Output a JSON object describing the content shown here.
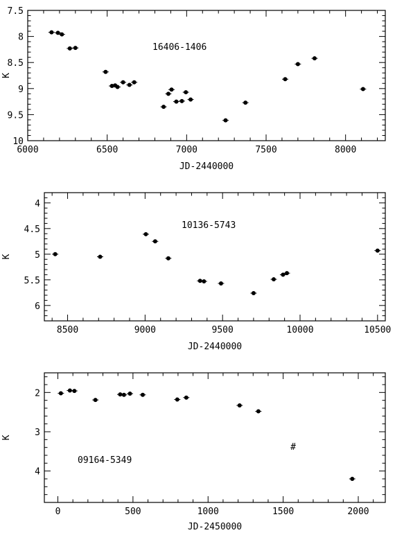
{
  "chart_data": [
    {
      "type": "scatter",
      "annotation": "16406-1406",
      "xlabel": "JD-2440000",
      "ylabel": "K",
      "xlim": [
        6000,
        8250
      ],
      "ylim": [
        7.5,
        10
      ],
      "y_inverted": true,
      "xticks": [
        6000,
        6500,
        7000,
        7500,
        8000
      ],
      "yticks": [
        7.5,
        8,
        8.5,
        9,
        9.5,
        10
      ],
      "xtick_labels": [
        "6000",
        "6500",
        "7000",
        "7500",
        "8000"
      ],
      "ytick_labels": [
        "7.5",
        "8",
        "8.5",
        "9",
        "9.5",
        "10"
      ],
      "grid": false,
      "points": [
        {
          "x": 6150,
          "y": 7.92
        },
        {
          "x": 6190,
          "y": 7.93
        },
        {
          "x": 6215,
          "y": 7.96
        },
        {
          "x": 6265,
          "y": 8.23
        },
        {
          "x": 6300,
          "y": 8.22
        },
        {
          "x": 6490,
          "y": 8.68
        },
        {
          "x": 6530,
          "y": 8.95
        },
        {
          "x": 6550,
          "y": 8.94
        },
        {
          "x": 6565,
          "y": 8.97
        },
        {
          "x": 6600,
          "y": 8.88
        },
        {
          "x": 6640,
          "y": 8.93
        },
        {
          "x": 6670,
          "y": 8.88
        },
        {
          "x": 6855,
          "y": 9.35
        },
        {
          "x": 6885,
          "y": 9.1
        },
        {
          "x": 6905,
          "y": 9.02
        },
        {
          "x": 6935,
          "y": 9.25
        },
        {
          "x": 6970,
          "y": 9.24
        },
        {
          "x": 6995,
          "y": 9.07
        },
        {
          "x": 7025,
          "y": 9.21
        },
        {
          "x": 7245,
          "y": 9.61
        },
        {
          "x": 7370,
          "y": 9.27
        },
        {
          "x": 7620,
          "y": 8.82
        },
        {
          "x": 7700,
          "y": 8.53
        },
        {
          "x": 7805,
          "y": 8.42
        },
        {
          "x": 8110,
          "y": 9.01
        }
      ]
    },
    {
      "type": "scatter",
      "annotation": "10136-5743",
      "xlabel": "JD-2440000",
      "ylabel": "K",
      "xlim": [
        8350,
        10550
      ],
      "ylim": [
        3.8,
        6.3
      ],
      "y_inverted": true,
      "xticks": [
        8500,
        9000,
        9500,
        10000,
        10500
      ],
      "yticks": [
        4,
        4.5,
        5,
        5.5,
        6
      ],
      "xtick_labels": [
        "8500",
        "9000",
        "9500",
        "10000",
        "10500"
      ],
      "ytick_labels": [
        "4",
        "4.5",
        "5",
        "5.5",
        "6"
      ],
      "grid": false,
      "points": [
        {
          "x": 8420,
          "y": 5.0
        },
        {
          "x": 8710,
          "y": 5.05
        },
        {
          "x": 9005,
          "y": 4.61
        },
        {
          "x": 9065,
          "y": 4.75
        },
        {
          "x": 9150,
          "y": 5.08
        },
        {
          "x": 9355,
          "y": 5.52
        },
        {
          "x": 9380,
          "y": 5.53
        },
        {
          "x": 9490,
          "y": 5.57
        },
        {
          "x": 9700,
          "y": 5.76
        },
        {
          "x": 9830,
          "y": 5.49
        },
        {
          "x": 9890,
          "y": 5.4
        },
        {
          "x": 9915,
          "y": 5.37
        },
        {
          "x": 10500,
          "y": 4.93
        }
      ]
    },
    {
      "type": "scatter",
      "annotation": "09164-5349",
      "marker_note": "#",
      "xlabel": "JD-2450000",
      "ylabel": "K",
      "xlim": [
        -90,
        2180
      ],
      "ylim": [
        1.5,
        4.8
      ],
      "y_inverted": true,
      "xticks": [
        0,
        500,
        1000,
        1500,
        2000
      ],
      "yticks": [
        2,
        3,
        4
      ],
      "xtick_labels": [
        "0",
        "500",
        "1000",
        "1500",
        "2000"
      ],
      "ytick_labels": [
        "2",
        "3",
        "4"
      ],
      "grid": false,
      "points": [
        {
          "x": 20,
          "y": 2.02
        },
        {
          "x": 80,
          "y": 1.95
        },
        {
          "x": 110,
          "y": 1.96
        },
        {
          "x": 250,
          "y": 2.19
        },
        {
          "x": 415,
          "y": 2.05
        },
        {
          "x": 440,
          "y": 2.06
        },
        {
          "x": 480,
          "y": 2.03
        },
        {
          "x": 565,
          "y": 2.06
        },
        {
          "x": 795,
          "y": 2.18
        },
        {
          "x": 855,
          "y": 2.13
        },
        {
          "x": 1210,
          "y": 2.33
        },
        {
          "x": 1335,
          "y": 2.48
        },
        {
          "x": 1960,
          "y": 4.2
        }
      ]
    }
  ]
}
